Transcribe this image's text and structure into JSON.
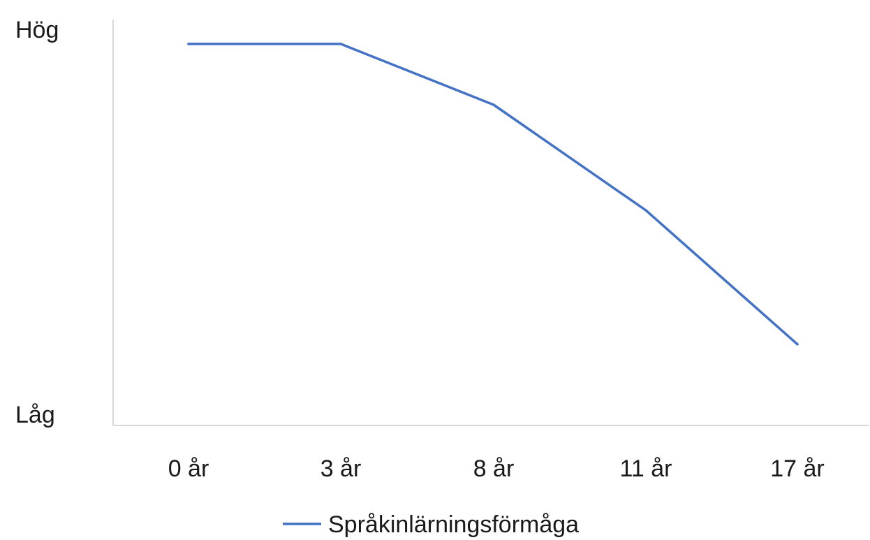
{
  "chart_data": {
    "type": "line",
    "title": "",
    "xlabel": "",
    "ylabel": "",
    "categories": [
      "0 år",
      "3 år",
      "8 år",
      "11 år",
      "17 år"
    ],
    "y_tick_labels": {
      "top": "Hög",
      "bottom": "Låg"
    },
    "ylim": [
      0,
      100
    ],
    "series": [
      {
        "name": "Språkinlärningsförmåga",
        "color": "#4472C4",
        "values": [
          94,
          94,
          79,
          53,
          20
        ]
      }
    ],
    "legend": {
      "position": "bottom",
      "entries": [
        "Språkinlärningsförmåga"
      ]
    },
    "grid": false
  }
}
